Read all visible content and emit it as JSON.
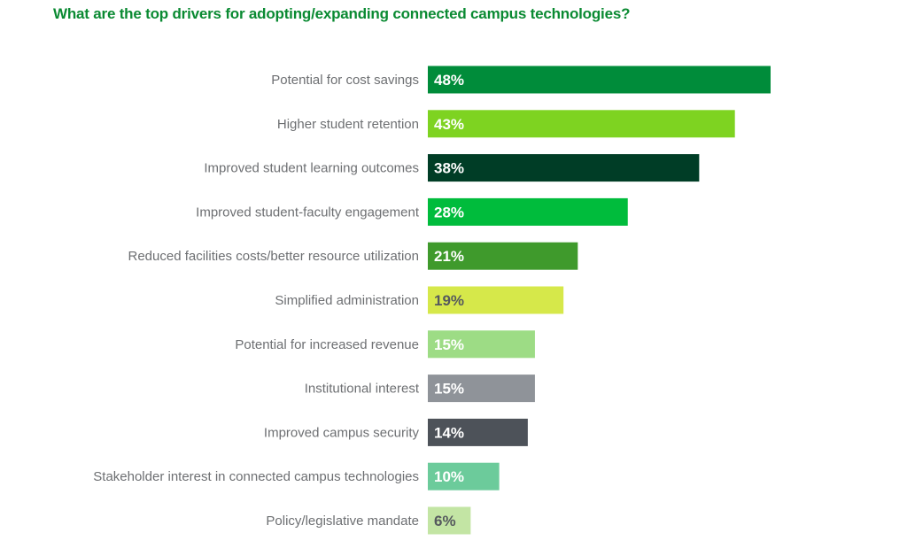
{
  "chart_data": {
    "type": "bar",
    "orientation": "horizontal",
    "title": "What are the top drivers for adopting/expanding connected campus technologies?",
    "title_color": "#0a8a32",
    "xlim": [
      0,
      48
    ],
    "grid": false,
    "legend": "none",
    "categories": [
      "Potential for cost savings",
      "Higher student retention",
      "Improved student learning outcomes",
      "Improved student-faculty engagement",
      "Reduced facilities costs/better resource utilization",
      "Simplified administration",
      "Potential for increased revenue",
      "Institutional interest",
      "Improved campus security",
      "Stakeholder interest in connected campus technologies",
      "Policy/legislative mandate"
    ],
    "values": [
      48,
      43,
      38,
      28,
      21,
      19,
      15,
      15,
      14,
      10,
      6
    ],
    "value_labels": [
      "48%",
      "43%",
      "38%",
      "28%",
      "21%",
      "19%",
      "15%",
      "15%",
      "14%",
      "10%",
      "6%"
    ],
    "bar_colors": [
      "#008c3a",
      "#7ed321",
      "#003d26",
      "#00bc3c",
      "#3f9a2c",
      "#d6e84a",
      "#9ddc85",
      "#8f9399",
      "#4d5259",
      "#6ccb9b",
      "#c3e5a4"
    ],
    "label_colors": [
      "#ffffff",
      "#ffffff",
      "#ffffff",
      "#ffffff",
      "#ffffff",
      "#55595e",
      "#ffffff",
      "#ffffff",
      "#ffffff",
      "#ffffff",
      "#55595e"
    ],
    "category_label_color": "#6d6f72"
  }
}
